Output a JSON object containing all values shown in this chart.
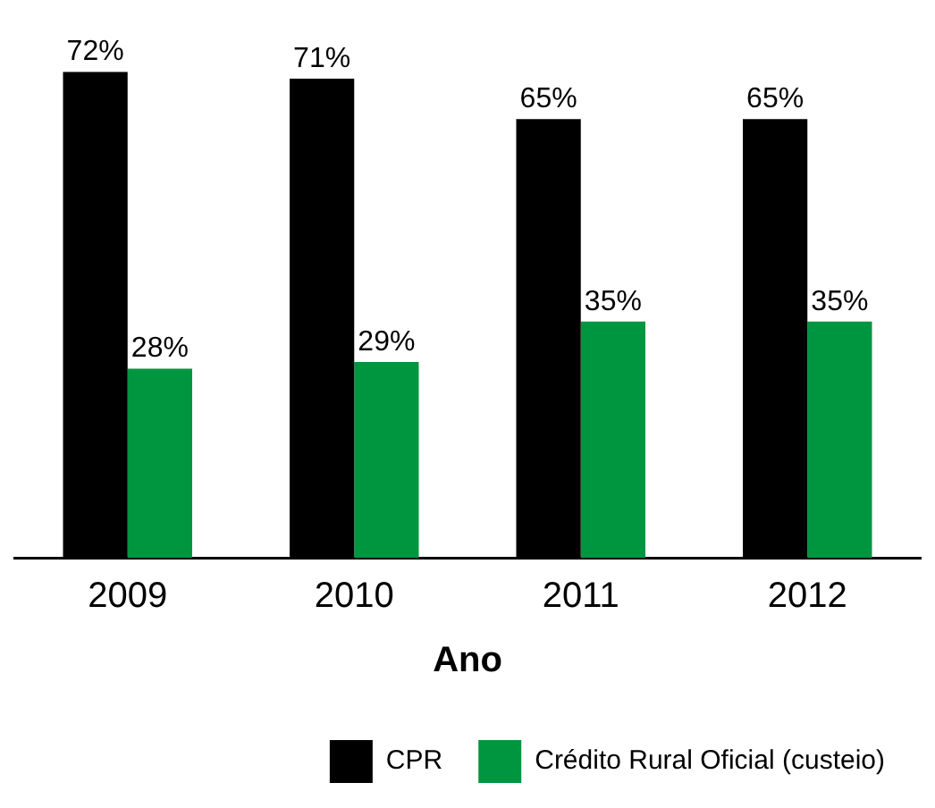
{
  "chart_data": {
    "type": "bar",
    "xlabel": "Ano",
    "categories": [
      "2009",
      "2010",
      "2011",
      "2012"
    ],
    "series": [
      {
        "name": "CPR",
        "color": "#000000",
        "values": [
          72,
          71,
          65,
          65
        ],
        "value_labels": [
          "72%",
          "71%",
          "65%",
          "65%"
        ]
      },
      {
        "name": "Crédito Rural Oficial (custeio)",
        "color": "#009640",
        "values": [
          28,
          29,
          35,
          35
        ],
        "value_labels": [
          "28%",
          "29%",
          "35%",
          "35%"
        ]
      }
    ],
    "tick_labels": "x",
    "grid": false,
    "legend": "bottom"
  }
}
